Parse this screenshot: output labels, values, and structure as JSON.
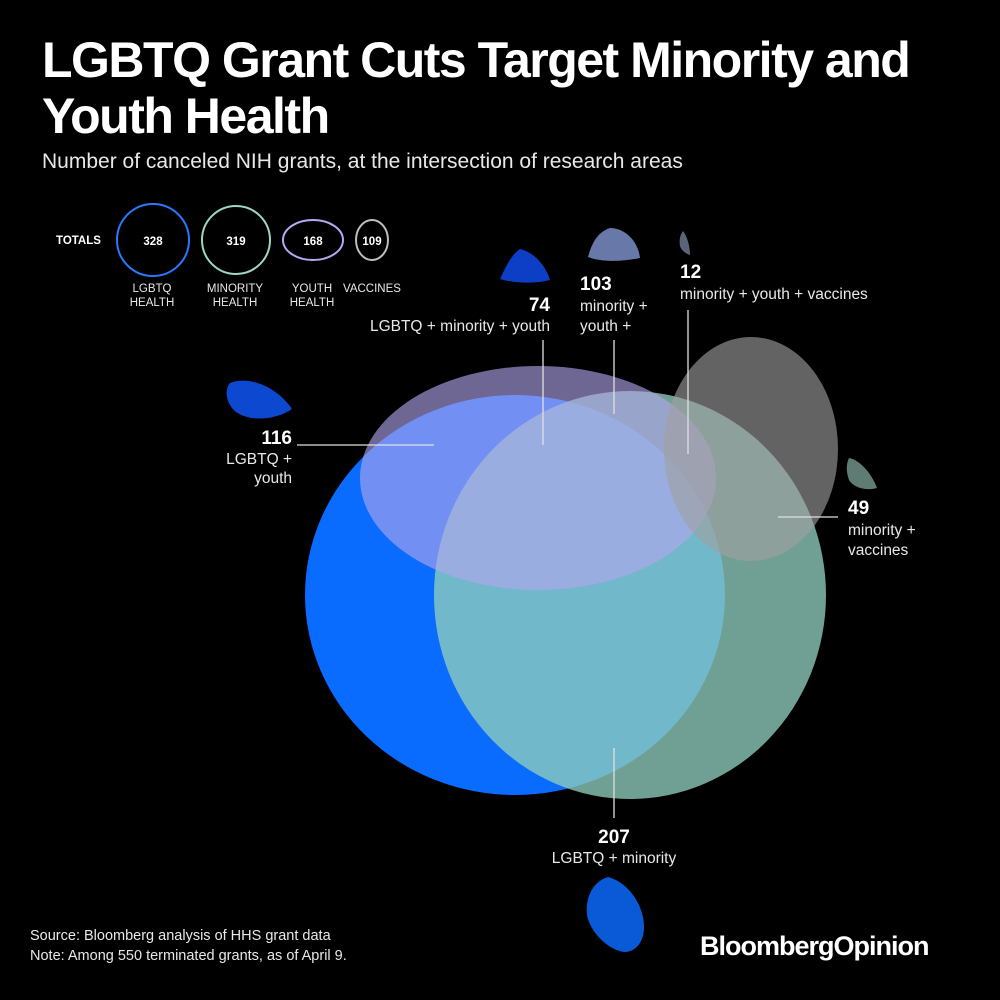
{
  "header": {
    "title": "LGBTQ Grant Cuts Target Minority and Youth Health",
    "subtitle": "Number of canceled NIH grants, at the intersection of research areas"
  },
  "totals": {
    "label": "TOTALS",
    "items": [
      {
        "value": "328",
        "line1": "LGBTQ",
        "line2": "HEALTH",
        "color": "#1f6fff"
      },
      {
        "value": "319",
        "line1": "MINORITY",
        "line2": "HEALTH",
        "color": "#9fd6c4"
      },
      {
        "value": "168",
        "line1": "YOUTH",
        "line2": "HEALTH",
        "color": "#b6a7f0"
      },
      {
        "value": "109",
        "line1": "VACCINES",
        "line2": "",
        "color": "#a8a8a8"
      }
    ]
  },
  "intersections": [
    {
      "value": "116",
      "lines": [
        "LGBTQ +",
        "youth"
      ]
    },
    {
      "value": "74",
      "lines": [
        "LGBTQ + minority + youth"
      ]
    },
    {
      "value": "103",
      "lines": [
        "minority +",
        "youth +"
      ]
    },
    {
      "value": "12",
      "lines": [
        "minority + youth + vaccines"
      ]
    },
    {
      "value": "49",
      "lines": [
        "minority +",
        "vaccines"
      ]
    },
    {
      "value": "207",
      "lines": [
        "LGBTQ + minority"
      ]
    }
  ],
  "colors": {
    "lgbtq": "#0a6cff",
    "minority": "#8fcdbd",
    "youth": "#b3a6ee",
    "vaccines": "#a0a0a0",
    "background": "#000000"
  },
  "footer": {
    "source": "Source: Bloomberg analysis of HHS grant data",
    "note": "Note: Among 550 terminated grants, as of April 9."
  },
  "brand": {
    "name": "BloombergOpinion"
  }
}
